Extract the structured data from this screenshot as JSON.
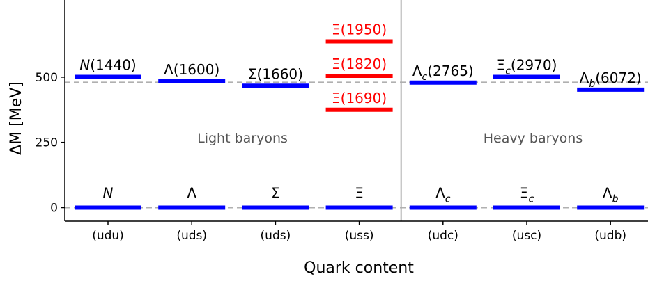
{
  "chart_data": {
    "type": "level-diagram",
    "xlabel": "Quark content",
    "ylabel": "ΔM [MeV]",
    "ylim": [
      -50,
      800
    ],
    "yticks": [
      0,
      250,
      500
    ],
    "reference_line_y": 480,
    "categories": [
      "(udu)",
      "(uds)",
      "(uds)",
      "(uss)",
      "(udc)",
      "(usc)",
      "(udb)"
    ],
    "ground_states": [
      {
        "base": "N",
        "sub": "",
        "value": 0
      },
      {
        "base": "Λ",
        "sub": "",
        "value": 0
      },
      {
        "base": "Σ",
        "sub": "",
        "value": 0
      },
      {
        "base": "Ξ",
        "sub": "",
        "value": 0
      },
      {
        "base": "Λ",
        "sub": "c",
        "value": 0
      },
      {
        "base": "Ξ",
        "sub": "c",
        "value": 0
      },
      {
        "base": "Λ",
        "sub": "b",
        "value": 0
      }
    ],
    "excited_states": [
      {
        "category": 0,
        "base": "N",
        "sub": "",
        "mass": "(1440)",
        "value": 501,
        "color": "#0000ff",
        "italic": true
      },
      {
        "category": 1,
        "base": "Λ",
        "sub": "",
        "mass": "(1600)",
        "value": 484,
        "color": "#0000ff",
        "italic": false
      },
      {
        "category": 2,
        "base": "Σ",
        "sub": "",
        "mass": "(1660)",
        "value": 467,
        "color": "#0000ff",
        "italic": false
      },
      {
        "category": 3,
        "base": "Ξ",
        "sub": "",
        "mass": "(1690)",
        "value": 375,
        "color": "#ff0000",
        "italic": false
      },
      {
        "category": 3,
        "base": "Ξ",
        "sub": "",
        "mass": "(1820)",
        "value": 505,
        "color": "#ff0000",
        "italic": false
      },
      {
        "category": 3,
        "base": "Ξ",
        "sub": "",
        "mass": "(1950)",
        "value": 637,
        "color": "#ff0000",
        "italic": false
      },
      {
        "category": 4,
        "base": "Λ",
        "sub": "c",
        "mass": "(2765)",
        "value": 479,
        "color": "#0000ff",
        "italic": false
      },
      {
        "category": 5,
        "base": "Ξ",
        "sub": "c",
        "mass": "(2970)",
        "value": 501,
        "color": "#0000ff",
        "italic": false
      },
      {
        "category": 6,
        "base": "Λ",
        "sub": "b",
        "mass": "(6072)",
        "value": 452,
        "color": "#0000ff",
        "italic": false
      }
    ],
    "annotations": {
      "light": "Light baryons",
      "heavy": "Heavy baryons"
    },
    "divider_after_category": 3,
    "colors": {
      "level": "#0000ff",
      "xi_level": "#ff0000",
      "dashed": "#b0b0b0",
      "divider": "#b0b0b0",
      "annotation": "#555555"
    }
  }
}
